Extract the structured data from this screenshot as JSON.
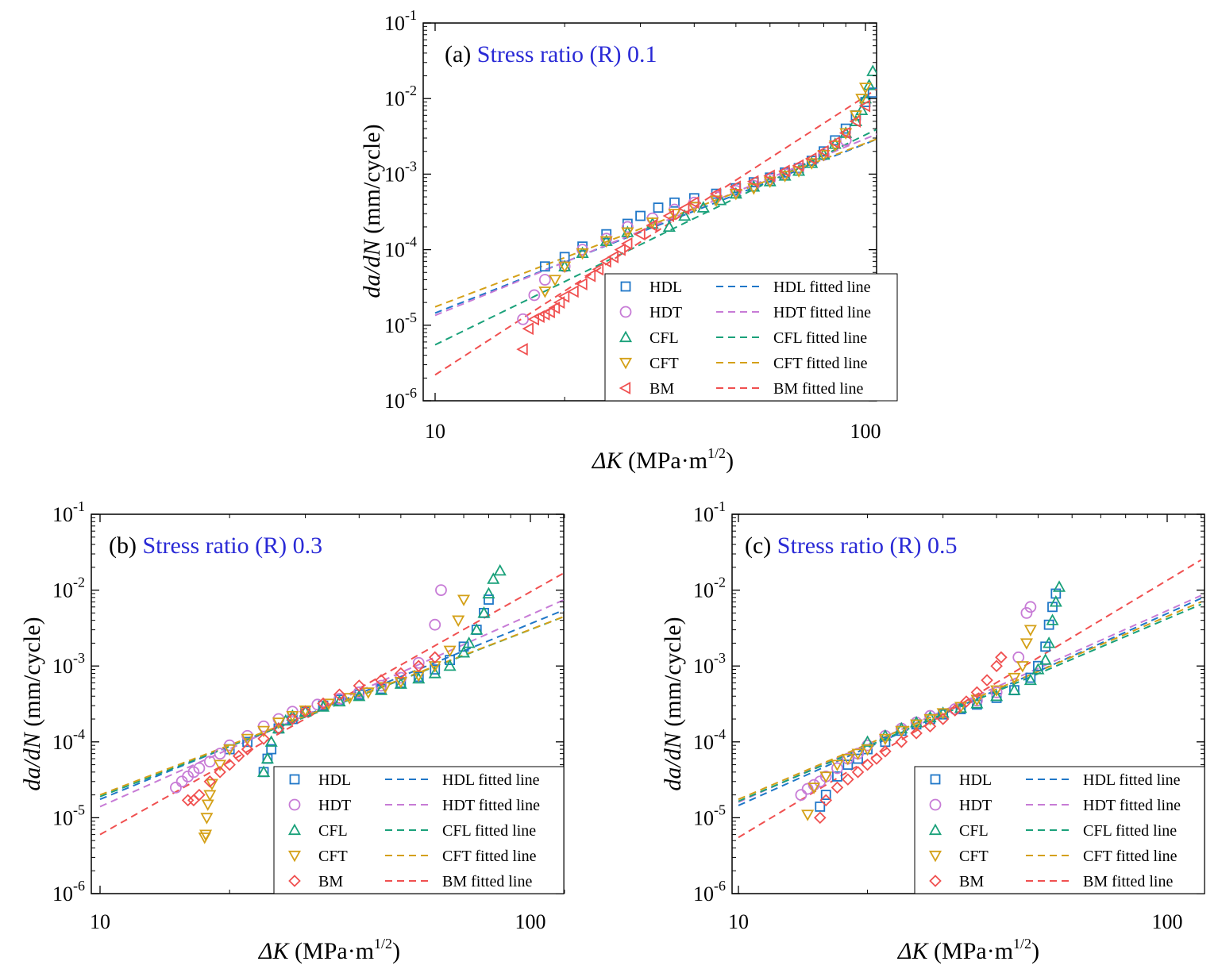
{
  "colors": {
    "HDL": "#1f77c8",
    "HDT": "#c77bd6",
    "CFL": "#1aa17a",
    "CFT": "#d4a017",
    "BM": "#f05050",
    "title_accent": "#2a2ad6"
  },
  "legend": {
    "markers": [
      "HDL",
      "HDT",
      "CFL",
      "CFT",
      "BM"
    ],
    "lines": [
      "HDL fitted line",
      "HDT fitted line",
      "CFL fitted line",
      "CFT fitted line",
      "BM  fitted line"
    ]
  },
  "chart_data": [
    {
      "type": "scatter",
      "panel": "(a)",
      "title_prefix": "(a) ",
      "title": "Stress ratio (R) 0.1",
      "xlabel_sym": "ΔK",
      "xlabel_unit": " (MPa·m",
      "xlabel_exp": "1/2",
      "xlabel_close": ")",
      "ylabel_sym": "da/dN",
      "ylabel_unit": " (mm/cycle)",
      "x_scale": "log",
      "y_scale": "log",
      "xlim": [
        10,
        120
      ],
      "ylim": [
        1e-06,
        0.1
      ],
      "xticks": [
        "10",
        "100"
      ],
      "yticks": [
        {
          "base": "10",
          "exp": "-6"
        },
        {
          "base": "10",
          "exp": "-5"
        },
        {
          "base": "10",
          "exp": "-4"
        },
        {
          "base": "10",
          "exp": "-3"
        },
        {
          "base": "10",
          "exp": "-2"
        },
        {
          "base": "10",
          "exp": "-1"
        }
      ],
      "legend_position": "bottom-right",
      "fitted_lines": [
        {
          "name": "HDL fitted line",
          "x": [
            10,
            120
          ],
          "y": [
            1.45e-05,
            0.0038
          ]
        },
        {
          "name": "HDT fitted line",
          "x": [
            10,
            120
          ],
          "y": [
            1.35e-05,
            0.0045
          ]
        },
        {
          "name": "CFL fitted line",
          "x": [
            10,
            120
          ],
          "y": [
            5.5e-06,
            0.0055
          ]
        },
        {
          "name": "CFT fitted line",
          "x": [
            10,
            120
          ],
          "y": [
            1.75e-05,
            0.0038
          ]
        },
        {
          "name": "BM fitted line",
          "x": [
            10,
            120
          ],
          "y": [
            2.2e-06,
            0.021
          ]
        }
      ],
      "series": [
        {
          "name": "HDL",
          "marker": "square",
          "x": [
            18,
            20,
            22,
            25,
            28,
            30,
            33,
            36,
            40,
            45,
            50,
            55,
            60,
            65,
            70,
            75,
            80,
            85,
            90,
            95,
            100,
            104
          ],
          "y": [
            6e-05,
            8e-05,
            0.00011,
            0.00016,
            0.00022,
            0.00028,
            0.00036,
            0.00042,
            0.00048,
            0.00055,
            0.00065,
            0.00078,
            0.0009,
            0.00105,
            0.0012,
            0.0015,
            0.002,
            0.0028,
            0.004,
            0.006,
            0.009,
            0.012
          ]
        },
        {
          "name": "HDT",
          "marker": "circle",
          "x": [
            16,
            17,
            18,
            20,
            22,
            25,
            28,
            32,
            36,
            40,
            45,
            50,
            55,
            60,
            65,
            70,
            80,
            90
          ],
          "y": [
            1.2e-05,
            2.5e-05,
            4e-05,
            6e-05,
            0.0001,
            0.00014,
            0.0002,
            0.00026,
            0.00034,
            0.00042,
            0.0005,
            0.0006,
            0.0007,
            0.00085,
            0.001,
            0.0012,
            0.0018,
            0.0028
          ]
        },
        {
          "name": "CFL",
          "marker": "triangle-up",
          "x": [
            20,
            22,
            25,
            28,
            32,
            35,
            38,
            42,
            46,
            50,
            55,
            60,
            65,
            70,
            75,
            80,
            85,
            90,
            95,
            98,
            100,
            102,
            104
          ],
          "y": [
            6e-05,
            9e-05,
            0.00013,
            0.00017,
            0.00022,
            0.0002,
            0.00028,
            0.00036,
            0.00045,
            0.00055,
            0.00068,
            0.0008,
            0.00095,
            0.0011,
            0.0014,
            0.0018,
            0.0025,
            0.0035,
            0.005,
            0.007,
            0.01,
            0.015,
            0.023
          ]
        },
        {
          "name": "CFT",
          "marker": "triangle-down",
          "x": [
            18,
            19,
            20,
            22,
            25,
            28,
            32,
            36,
            40,
            45,
            50,
            55,
            60,
            65,
            70,
            75,
            80,
            85,
            90,
            95,
            98,
            100
          ],
          "y": [
            2.8e-05,
            4e-05,
            6e-05,
            9e-05,
            0.00013,
            0.00017,
            0.00023,
            0.0003,
            0.00037,
            0.00045,
            0.00055,
            0.00065,
            0.0008,
            0.00095,
            0.0011,
            0.0014,
            0.0018,
            0.0024,
            0.0035,
            0.006,
            0.01,
            0.014
          ]
        },
        {
          "name": "BM",
          "marker": "triangle-left",
          "x": [
            16,
            16.5,
            17,
            17.5,
            18,
            18.5,
            19,
            19.5,
            20,
            21,
            22,
            23,
            24,
            25,
            26,
            27,
            28,
            30,
            32,
            35,
            38,
            40,
            45,
            50,
            55,
            60,
            65,
            70,
            75,
            80,
            85,
            90,
            95,
            100
          ],
          "y": [
            4.8e-06,
            9e-06,
            1.2e-05,
            1.3e-05,
            1.4e-05,
            1.5e-05,
            1.7e-05,
            2e-05,
            2.4e-05,
            2.8e-05,
            3.5e-05,
            4.5e-05,
            5.5e-05,
            7e-05,
            8e-05,
            0.0001,
            0.00012,
            0.00016,
            0.00021,
            0.00028,
            0.00035,
            0.00042,
            0.00055,
            0.00068,
            0.0008,
            0.00095,
            0.0011,
            0.0013,
            0.0016,
            0.002,
            0.0026,
            0.0035,
            0.005,
            0.008
          ]
        }
      ]
    },
    {
      "type": "scatter",
      "panel": "(b)",
      "title_prefix": "(b) ",
      "title": "Stress ratio (R) 0.3",
      "xlabel_sym": "ΔK",
      "xlabel_unit": " (MPa·m",
      "xlabel_exp": "1/2",
      "xlabel_close": ")",
      "ylabel_sym": "da/dN",
      "ylabel_unit": " (mm/cycle)",
      "x_scale": "log",
      "y_scale": "log",
      "xlim": [
        10,
        120
      ],
      "ylim": [
        1e-06,
        0.1
      ],
      "xticks": [
        "10",
        "100"
      ],
      "yticks": [
        {
          "base": "10",
          "exp": "-6"
        },
        {
          "base": "10",
          "exp": "-5"
        },
        {
          "base": "10",
          "exp": "-4"
        },
        {
          "base": "10",
          "exp": "-3"
        },
        {
          "base": "10",
          "exp": "-2"
        },
        {
          "base": "10",
          "exp": "-1"
        }
      ],
      "legend_position": "bottom-right",
      "fitted_lines": [
        {
          "name": "HDL fitted line",
          "x": [
            10,
            120
          ],
          "y": [
            1.75e-05,
            0.0055
          ]
        },
        {
          "name": "HDT fitted line",
          "x": [
            10,
            120
          ],
          "y": [
            1.4e-05,
            0.0075
          ]
        },
        {
          "name": "CFL fitted line",
          "x": [
            10,
            120
          ],
          "y": [
            1.9e-05,
            0.0045
          ]
        },
        {
          "name": "CFT fitted line",
          "x": [
            10,
            120
          ],
          "y": [
            2e-05,
            0.0045
          ]
        },
        {
          "name": "BM fitted line",
          "x": [
            10,
            120
          ],
          "y": [
            6e-06,
            0.017
          ]
        }
      ],
      "series": [
        {
          "name": "HDL",
          "marker": "square",
          "x": [
            20,
            22,
            24,
            24.5,
            25,
            26,
            28,
            30,
            33,
            36,
            40,
            45,
            50,
            55,
            60,
            65,
            70,
            75,
            78,
            80
          ],
          "y": [
            8e-05,
            0.0001,
            4e-05,
            6e-05,
            8e-05,
            0.00015,
            0.0002,
            0.00025,
            0.0003,
            0.00036,
            0.00042,
            0.0005,
            0.0006,
            0.00072,
            0.0009,
            0.0012,
            0.0018,
            0.003,
            0.005,
            0.0075
          ]
        },
        {
          "name": "HDT",
          "marker": "circle",
          "x": [
            15,
            15.5,
            16,
            16.5,
            17,
            18,
            19,
            20,
            22,
            24,
            26,
            28,
            32,
            36,
            40,
            45,
            50,
            55,
            60,
            62
          ],
          "y": [
            2.5e-05,
            3e-05,
            3.5e-05,
            4e-05,
            4.5e-05,
            5.5e-05,
            7e-05,
            9e-05,
            0.00012,
            0.00016,
            0.0002,
            0.00025,
            0.00031,
            0.00037,
            0.00045,
            0.00055,
            0.0007,
            0.0011,
            0.0035,
            0.01
          ]
        },
        {
          "name": "CFL",
          "marker": "triangle-up",
          "x": [
            24,
            24.5,
            25,
            26,
            27,
            28,
            30,
            33,
            36,
            40,
            45,
            50,
            55,
            60,
            65,
            70,
            72,
            75,
            78,
            80,
            82,
            85
          ],
          "y": [
            4e-05,
            6e-05,
            0.0001,
            0.00015,
            0.00019,
            0.00022,
            0.00025,
            0.00029,
            0.00034,
            0.0004,
            0.00048,
            0.00058,
            0.00068,
            0.0008,
            0.001,
            0.0015,
            0.002,
            0.003,
            0.005,
            0.009,
            0.014,
            0.018
          ]
        },
        {
          "name": "CFT",
          "marker": "triangle-down",
          "x": [
            17.5,
            17.6,
            17.7,
            17.8,
            18,
            18.2,
            19,
            20,
            22,
            24,
            26,
            28,
            30,
            34,
            38,
            42,
            46,
            50,
            55,
            60,
            65,
            68,
            70
          ],
          "y": [
            5.5e-06,
            6e-06,
            1e-05,
            1.5e-05,
            2e-05,
            2.8e-05,
            5e-05,
            8e-05,
            0.00011,
            0.00014,
            0.00018,
            0.00022,
            0.00026,
            0.00032,
            0.00038,
            0.00045,
            0.00053,
            0.00062,
            0.00075,
            0.001,
            0.0016,
            0.004,
            0.0075
          ]
        },
        {
          "name": "BM",
          "marker": "diamond",
          "x": [
            16,
            16.5,
            17,
            18,
            19,
            20,
            21,
            22,
            24,
            26,
            28,
            30,
            33,
            36,
            40,
            45,
            50,
            55,
            60
          ],
          "y": [
            1.7e-05,
            1.7e-05,
            2e-05,
            3e-05,
            4e-05,
            5e-05,
            6.5e-05,
            8e-05,
            0.00011,
            0.00015,
            0.0002,
            0.00025,
            0.00032,
            0.00042,
            0.00055,
            0.00065,
            0.0008,
            0.001,
            0.0013
          ]
        }
      ]
    },
    {
      "type": "scatter",
      "panel": "(c)",
      "title_prefix": "(c) ",
      "title": "Stress ratio (R) 0.5",
      "xlabel_sym": "ΔK",
      "xlabel_unit": " (MPa·m",
      "xlabel_exp": "1/2",
      "xlabel_close": ")",
      "ylabel_sym": "da/dN",
      "ylabel_unit": " (mm/cycle)",
      "x_scale": "log",
      "y_scale": "log",
      "xlim": [
        10,
        120
      ],
      "ylim": [
        1e-06,
        0.1
      ],
      "xticks": [
        "10",
        "100"
      ],
      "yticks": [
        {
          "base": "10",
          "exp": "-6"
        },
        {
          "base": "10",
          "exp": "-5"
        },
        {
          "base": "10",
          "exp": "-4"
        },
        {
          "base": "10",
          "exp": "-3"
        },
        {
          "base": "10",
          "exp": "-2"
        },
        {
          "base": "10",
          "exp": "-1"
        }
      ],
      "legend_position": "bottom-right",
      "fitted_lines": [
        {
          "name": "HDL fitted line",
          "x": [
            10,
            120
          ],
          "y": [
            1.45e-05,
            0.0078
          ]
        },
        {
          "name": "HDT fitted line",
          "x": [
            10,
            120
          ],
          "y": [
            1.6e-05,
            0.0085
          ]
        },
        {
          "name": "CFL fitted line",
          "x": [
            10,
            120
          ],
          "y": [
            1.65e-05,
            0.0065
          ]
        },
        {
          "name": "CFT fitted line",
          "x": [
            10,
            120
          ],
          "y": [
            1.75e-05,
            0.007
          ]
        },
        {
          "name": "BM fitted line",
          "x": [
            10,
            120
          ],
          "y": [
            5.5e-06,
            0.025
          ]
        }
      ],
      "series": [
        {
          "name": "HDL",
          "marker": "square",
          "x": [
            15.5,
            16,
            17,
            18,
            19,
            20,
            22,
            24,
            26,
            28,
            30,
            33,
            36,
            40,
            44,
            48,
            50,
            52,
            53,
            54,
            55
          ],
          "y": [
            1.4e-05,
            2e-05,
            3.5e-05,
            5e-05,
            6e-05,
            8e-05,
            0.0001,
            0.00014,
            0.00017,
            0.0002,
            0.00023,
            0.00027,
            0.00031,
            0.00038,
            0.00048,
            0.0007,
            0.001,
            0.0018,
            0.0035,
            0.006,
            0.009
          ]
        },
        {
          "name": "HDT",
          "marker": "circle",
          "x": [
            14,
            14.5,
            15,
            15.5,
            16,
            17,
            18,
            19,
            20,
            22,
            24,
            26,
            28,
            32,
            36,
            40,
            45,
            47,
            48
          ],
          "y": [
            2e-05,
            2.4e-05,
            2.7e-05,
            3e-05,
            3.5e-05,
            4.5e-05,
            6e-05,
            7e-05,
            9e-05,
            0.00012,
            0.00015,
            0.00018,
            0.00022,
            0.00027,
            0.00035,
            0.00045,
            0.0013,
            0.005,
            0.006
          ]
        },
        {
          "name": "CFL",
          "marker": "triangle-up",
          "x": [
            20,
            22,
            24,
            26,
            28,
            30,
            33,
            36,
            40,
            44,
            48,
            50,
            52,
            53,
            54,
            55,
            56
          ],
          "y": [
            0.0001,
            0.00012,
            0.00015,
            0.00018,
            0.00021,
            0.00024,
            0.00028,
            0.00032,
            0.0004,
            0.00048,
            0.00065,
            0.0009,
            0.0012,
            0.002,
            0.004,
            0.007,
            0.011
          ]
        },
        {
          "name": "CFT",
          "marker": "triangle-down",
          "x": [
            14.5,
            15,
            16,
            17,
            18,
            19,
            20,
            22,
            24,
            26,
            28,
            30,
            33,
            36,
            40,
            44,
            46,
            47,
            48
          ],
          "y": [
            1.1e-05,
            2.5e-05,
            3.5e-05,
            5e-05,
            6e-05,
            7e-05,
            8e-05,
            0.00011,
            0.00014,
            0.00017,
            0.0002,
            0.00024,
            0.00029,
            0.00036,
            0.00048,
            0.0007,
            0.001,
            0.002,
            0.003
          ]
        },
        {
          "name": "BM",
          "marker": "diamond",
          "x": [
            15.5,
            16,
            17,
            18,
            19,
            20,
            21,
            22,
            24,
            26,
            28,
            30,
            32,
            34,
            36,
            38,
            40,
            41
          ],
          "y": [
            1e-05,
            1.7e-05,
            2.5e-05,
            3.2e-05,
            4e-05,
            5e-05,
            6e-05,
            7.5e-05,
            0.0001,
            0.00013,
            0.00016,
            0.0002,
            0.00026,
            0.00034,
            0.00045,
            0.00065,
            0.001,
            0.0013
          ]
        }
      ]
    }
  ]
}
